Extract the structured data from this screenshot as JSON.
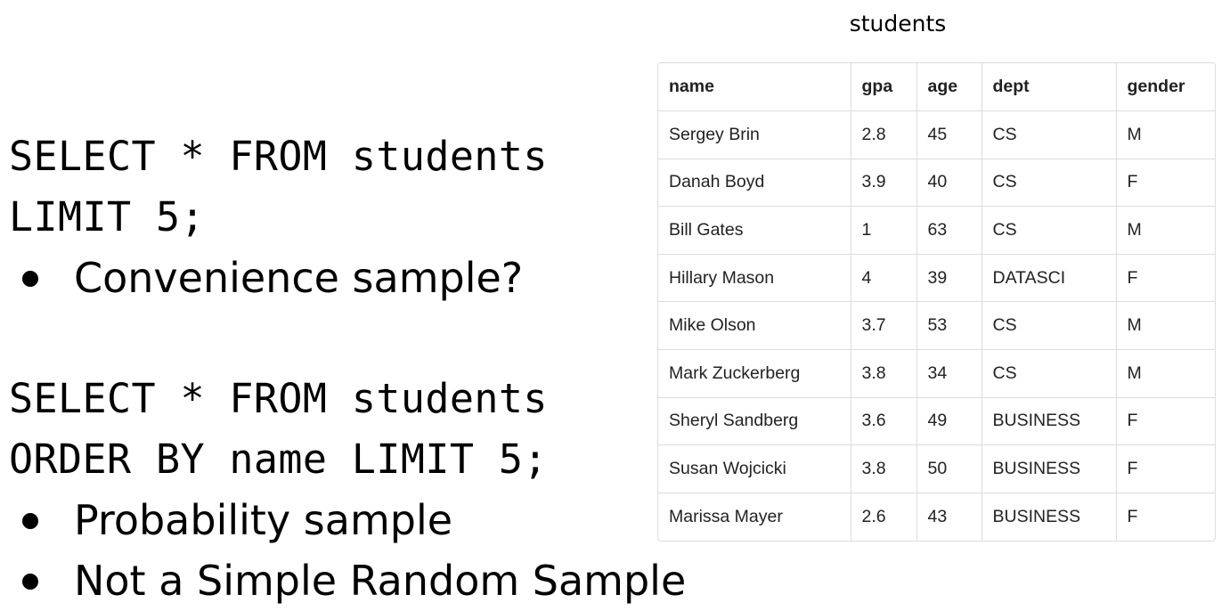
{
  "queries": [
    {
      "code_lines": [
        "SELECT * FROM students",
        "LIMIT 5;"
      ],
      "bullets": [
        "Convenience sample?"
      ]
    },
    {
      "code_lines": [
        "SELECT * FROM students",
        "ORDER BY name LIMIT 5;"
      ],
      "bullets": [
        "Probability sample",
        "Not a Simple Random Sample"
      ]
    }
  ],
  "table": {
    "caption": "students",
    "headers": [
      "name",
      "gpa",
      "age",
      "dept",
      "gender"
    ],
    "rows": [
      [
        "Sergey Brin",
        "2.8",
        "45",
        "CS",
        "M"
      ],
      [
        "Danah Boyd",
        "3.9",
        "40",
        "CS",
        "F"
      ],
      [
        "Bill Gates",
        "1",
        "63",
        "CS",
        "M"
      ],
      [
        "Hillary Mason",
        "4",
        "39",
        "DATASCI",
        "F"
      ],
      [
        "Mike Olson",
        "3.7",
        "53",
        "CS",
        "M"
      ],
      [
        "Mark Zuckerberg",
        "3.8",
        "34",
        "CS",
        "M"
      ],
      [
        "Sheryl Sandberg",
        "3.6",
        "49",
        "BUSINESS",
        "F"
      ],
      [
        "Susan Wojcicki",
        "3.8",
        "50",
        "BUSINESS",
        "F"
      ],
      [
        "Marissa Mayer",
        "2.6",
        "43",
        "BUSINESS",
        "F"
      ]
    ]
  }
}
